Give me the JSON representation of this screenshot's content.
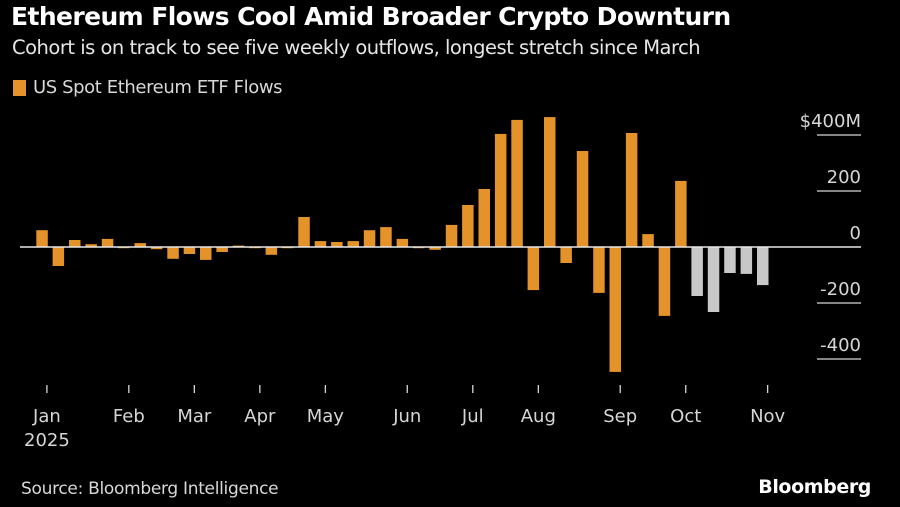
{
  "header": {
    "title": "Ethereum Flows Cool Amid Broader Crypto Downturn",
    "subtitle": "Cohort is on track to see five weekly outflows, longest stretch since March"
  },
  "footer": {
    "source": "Source: Bloomberg Intelligence",
    "brand": "Bloomberg"
  },
  "colors": {
    "background": "#000000",
    "bar_primary": "#e4922a",
    "bar_highlight": "#c8c8c8",
    "zero_line": "#e8e8e8",
    "text": "#d6d6d6"
  },
  "chart_data": {
    "type": "bar",
    "title": "Ethereum Flows Cool Amid Broader Crypto Downturn",
    "subtitle": "Cohort is on track to see five weekly outflows, longest stretch since March",
    "legend": [
      {
        "name": "US Spot Ethereum ETF Flows",
        "color": "#e4922a"
      }
    ],
    "legend_position": "top-left",
    "xlabel": "",
    "ylabel": "",
    "y_unit_prefix": "$",
    "y_unit_suffix": "M",
    "ylim": [
      -460,
      470
    ],
    "y_ticks": [
      400,
      200,
      0,
      -200,
      -400
    ],
    "y_tick_labels": [
      "$400M",
      "200",
      "0",
      "-200",
      "-400"
    ],
    "y_axis_side": "right",
    "grid": false,
    "x_ticks": [
      {
        "label": "Jan",
        "sublabel": "2025",
        "week_index": 0.3
      },
      {
        "label": "Feb",
        "week_index": 5.3
      },
      {
        "label": "Mar",
        "week_index": 9.3
      },
      {
        "label": "Apr",
        "week_index": 13.3
      },
      {
        "label": "May",
        "week_index": 17.3
      },
      {
        "label": "Jun",
        "week_index": 22.3
      },
      {
        "label": "Jul",
        "week_index": 26.3
      },
      {
        "label": "Aug",
        "week_index": 30.3
      },
      {
        "label": "Sep",
        "week_index": 35.3
      },
      {
        "label": "Oct",
        "week_index": 39.3
      },
      {
        "label": "Nov",
        "week_index": 44.3
      }
    ],
    "series": [
      {
        "name": "US Spot Ethereum ETF Flows",
        "unit": "USD millions, weekly",
        "values": [
          60,
          -68,
          25,
          10,
          29,
          -3,
          14,
          -8,
          -42,
          -25,
          -46,
          -18,
          5,
          -3,
          -28,
          -4,
          107,
          21,
          18,
          21,
          60,
          71,
          29,
          -3,
          -10,
          79,
          150,
          207,
          404,
          454,
          -154,
          464,
          -57,
          343,
          -164,
          -446,
          407,
          46,
          -246,
          236,
          -175,
          -232,
          -93,
          -96,
          -136
        ],
        "highlight_last_n": 5,
        "highlight_note": "last five weekly outflows shown in grey"
      }
    ]
  }
}
